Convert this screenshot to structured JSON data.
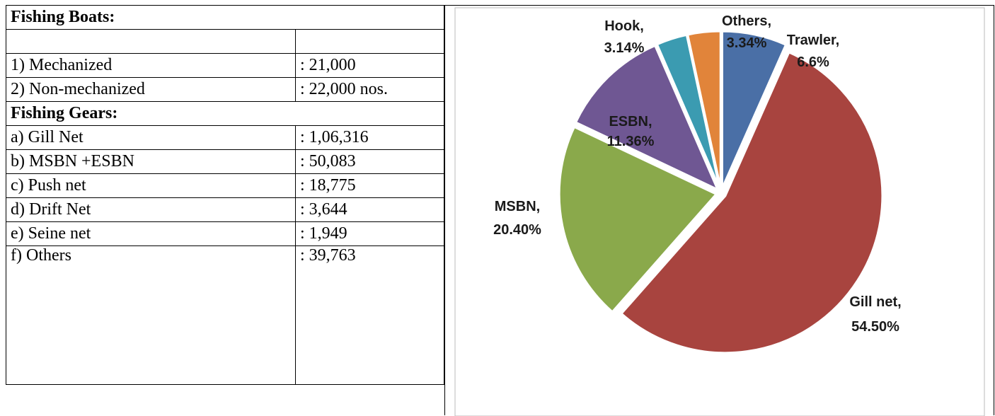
{
  "table": {
    "sections": [
      {
        "title": "Fishing Boats:",
        "rows": [
          [
            "1) Mechanized",
            ": 21,000"
          ],
          [
            "2) Non-mechanized",
            ": 22,000 nos."
          ]
        ]
      },
      {
        "title": "Fishing Gears:",
        "rows": [
          [
            "a) Gill Net",
            ": 1,06,316"
          ],
          [
            "b) MSBN +ESBN",
            ": 50,083"
          ],
          [
            "c) Push net",
            ": 18,775"
          ],
          [
            "d) Drift Net",
            ": 3,644"
          ],
          [
            "e) Seine net",
            ": 1,949"
          ],
          [
            "f) Others",
            ": 39,763"
          ]
        ]
      }
    ]
  },
  "chart_data": {
    "type": "pie",
    "categories": [
      "Trawler,",
      "Gill net,",
      "MSBN,",
      "ESBN,",
      "Hook,",
      "Others,"
    ],
    "values": [
      6.6,
      54.5,
      20.4,
      11.36,
      3.14,
      3.34
    ],
    "value_labels": [
      "6.6%",
      "54.50%",
      "20.40%",
      "11.36%",
      "3.14%",
      "3.34%"
    ],
    "colors": [
      "#4a6fa6",
      "#a8443f",
      "#8aa94b",
      "#6f5793",
      "#3b9bb1",
      "#e1843a"
    ]
  }
}
